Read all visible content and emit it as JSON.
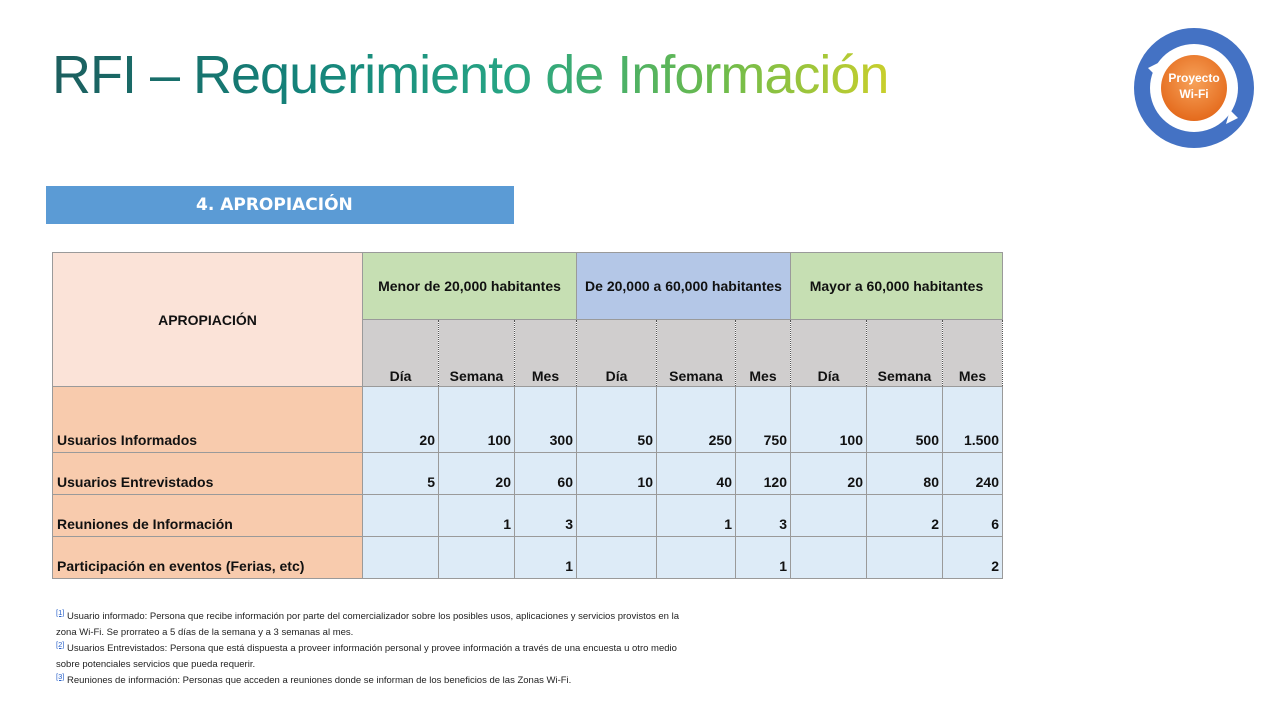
{
  "header": {
    "title": "RFI – Requerimiento de Información"
  },
  "badge": {
    "line1": "Proyecto",
    "line2": "Wi-Fi",
    "ring_color": "#4472c4",
    "center_color": "#ed7d31"
  },
  "section": {
    "label": "4. APROPIACIÓN",
    "color": "#5b9bd5"
  },
  "table": {
    "corner": "APROPIACIÓN",
    "groups": [
      "Menor de 20,000 habitantes",
      "De 20,000 a 60,000 habitantes",
      "Mayor a 60,000 habitantes"
    ],
    "subheaders": [
      "Día",
      "Semana",
      "Mes",
      "Día",
      "Semana",
      "Mes",
      "Día",
      "Semana",
      "Mes"
    ],
    "rows": [
      {
        "label": "Usuarios Informados",
        "values": [
          "20",
          "100",
          "300",
          "50",
          "250",
          "750",
          "100",
          "500",
          "1.500"
        ]
      },
      {
        "label": "Usuarios Entrevistados",
        "values": [
          "5",
          "20",
          "60",
          "10",
          "40",
          "120",
          "20",
          "80",
          "240"
        ]
      },
      {
        "label": "Reuniones de Información",
        "values": [
          "",
          "1",
          "3",
          "",
          "1",
          "3",
          "",
          "2",
          "6"
        ]
      },
      {
        "label": "Participación en eventos (Ferias, etc)",
        "values": [
          "",
          "",
          "1",
          "",
          "",
          "1",
          "",
          "",
          "2"
        ]
      }
    ]
  },
  "footnotes": [
    {
      "ref": "[1]",
      "line1": "Usuario informado: Persona que recibe información por parte del comercializador sobre los posibles usos, aplicaciones y servicios provistos en la",
      "line2": "zona Wi-Fi. Se prorrateo a 5 días de la semana y a 3 semanas al mes."
    },
    {
      "ref": "[2]",
      "line1": "Usuarios Entrevistados: Persona que está dispuesta a proveer información personal y provee información a través de una encuesta u otro medio",
      "line2": "sobre potenciales servicios que pueda requerir."
    },
    {
      "ref": "[3]",
      "line1": "Reuniones de información: Personas que acceden a reuniones donde se informan de los beneficios de las Zonas Wi-Fi.",
      "line2": ""
    }
  ]
}
